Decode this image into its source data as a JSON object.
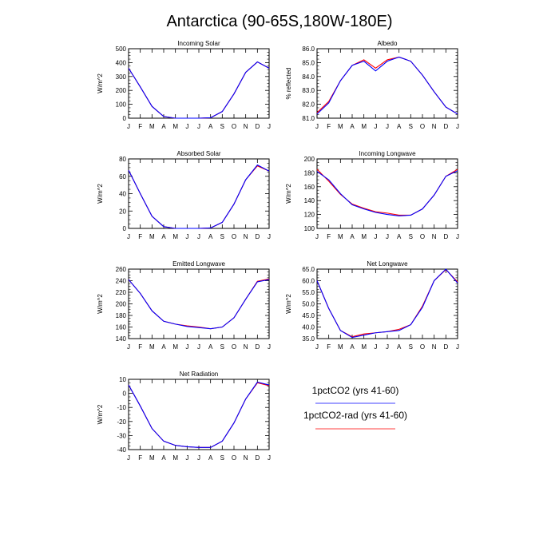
{
  "title": "Antarctica (90-65S,180W-180E)",
  "months": [
    "J",
    "F",
    "M",
    "A",
    "M",
    "J",
    "J",
    "A",
    "S",
    "O",
    "N",
    "D",
    "J"
  ],
  "legend": [
    {
      "label": "1pctCO2 (yrs 41-60)",
      "color": "#0000ff"
    },
    {
      "label": "1pctCO2-rad (yrs 41-60)",
      "color": "#ff0000"
    }
  ],
  "chart_data": [
    {
      "type": "line",
      "title": "Incoming Solar",
      "ylabel": "W/m^2",
      "ylim": [
        0,
        500
      ],
      "yticks": [
        0,
        100,
        200,
        300,
        400,
        500
      ],
      "ytick_labels": [
        "0",
        "100",
        "200",
        "300",
        "400",
        "500"
      ],
      "series": [
        {
          "color": "#0000ff",
          "values": [
            360,
            225,
            85,
            12,
            0,
            0,
            0,
            3,
            48,
            175,
            330,
            405,
            360
          ]
        },
        {
          "color": "#ff0000",
          "values": [
            360,
            225,
            85,
            12,
            0,
            0,
            0,
            3,
            48,
            175,
            330,
            405,
            360
          ]
        }
      ]
    },
    {
      "type": "line",
      "title": "Albedo",
      "ylabel": "% reflected",
      "ylim": [
        81,
        86
      ],
      "yticks": [
        81,
        82,
        83,
        84,
        85,
        86
      ],
      "ytick_labels": [
        "81.0",
        "82.0",
        "83.0",
        "84.0",
        "85.0",
        "86.0"
      ],
      "series": [
        {
          "color": "#0000ff",
          "values": [
            81.3,
            82.1,
            83.7,
            84.8,
            85.1,
            84.4,
            85.1,
            85.4,
            85.1,
            84.1,
            82.9,
            81.8,
            81.3
          ]
        },
        {
          "color": "#ff0000",
          "values": [
            81.4,
            82.2,
            83.7,
            84.8,
            85.2,
            84.6,
            85.2,
            85.4,
            85.1,
            84.1,
            82.9,
            81.8,
            81.3
          ]
        }
      ]
    },
    {
      "type": "line",
      "title": "Absorbed Solar",
      "ylabel": "W/m^2",
      "ylim": [
        0,
        80
      ],
      "yticks": [
        0,
        20,
        40,
        60,
        80
      ],
      "ytick_labels": [
        "0",
        "20",
        "40",
        "60",
        "80"
      ],
      "series": [
        {
          "color": "#0000ff",
          "values": [
            67,
            40,
            14,
            2,
            0,
            0,
            0,
            0.5,
            7,
            28,
            56,
            73,
            66
          ]
        },
        {
          "color": "#ff0000",
          "values": [
            67,
            40,
            14,
            2,
            0,
            0,
            0,
            0.5,
            7,
            28,
            56,
            72,
            66
          ]
        }
      ]
    },
    {
      "type": "line",
      "title": "Incoming Longwave",
      "ylabel": "W/m^2",
      "ylim": [
        100,
        200
      ],
      "yticks": [
        100,
        120,
        140,
        160,
        180,
        200
      ],
      "ytick_labels": [
        "100",
        "120",
        "140",
        "160",
        "180",
        "200"
      ],
      "series": [
        {
          "color": "#0000ff",
          "values": [
            182,
            170,
            150,
            134,
            128,
            123,
            120,
            118,
            119,
            128,
            148,
            175,
            183
          ]
        },
        {
          "color": "#ff0000",
          "values": [
            185,
            168,
            149,
            135,
            129,
            124,
            122,
            119,
            119,
            128,
            148,
            175,
            185
          ]
        }
      ]
    },
    {
      "type": "line",
      "title": "Emitted Longwave",
      "ylabel": "W/m^2",
      "ylim": [
        140,
        260
      ],
      "yticks": [
        140,
        160,
        180,
        200,
        220,
        240,
        260
      ],
      "ytick_labels": [
        "140",
        "160",
        "180",
        "200",
        "220",
        "240",
        "260"
      ],
      "series": [
        {
          "color": "#0000ff",
          "values": [
            242,
            218,
            188,
            170,
            165,
            161,
            159,
            157,
            160,
            176,
            208,
            238,
            242
          ]
        },
        {
          "color": "#ff0000",
          "values": [
            242,
            218,
            188,
            170,
            165,
            162,
            160,
            157,
            160,
            176,
            208,
            239,
            243
          ]
        }
      ]
    },
    {
      "type": "line",
      "title": "Net Longwave",
      "ylabel": "W/m^2",
      "ylim": [
        35,
        65
      ],
      "yticks": [
        35,
        40,
        45,
        50,
        55,
        60,
        65
      ],
      "ytick_labels": [
        "35.0",
        "40.0",
        "45.0",
        "50.0",
        "55.0",
        "60.0",
        "65.0"
      ],
      "series": [
        {
          "color": "#0000ff",
          "values": [
            60,
            48,
            38.5,
            35.5,
            36.5,
            37.5,
            38,
            38.5,
            41,
            48.5,
            60,
            65,
            59
          ]
        },
        {
          "color": "#ff0000",
          "values": [
            60,
            48,
            38.5,
            35.8,
            37,
            37.5,
            38,
            39,
            41,
            49,
            60,
            64.8,
            59.5
          ]
        }
      ]
    },
    {
      "type": "line",
      "title": "Net Radiation",
      "ylabel": "W/m^2",
      "ylim": [
        -40,
        10
      ],
      "yticks": [
        -40,
        -30,
        -20,
        -10,
        0,
        10
      ],
      "ytick_labels": [
        "-40",
        "-30",
        "-20",
        "-10",
        "0",
        "10"
      ],
      "series": [
        {
          "color": "#0000ff",
          "values": [
            6,
            -9,
            -25,
            -34,
            -37,
            -38,
            -38.5,
            -38.5,
            -34,
            -21,
            -4,
            8,
            6
          ]
        },
        {
          "color": "#ff0000",
          "values": [
            6,
            -9,
            -25,
            -34,
            -37,
            -38,
            -38.5,
            -38.5,
            -34,
            -21,
            -4,
            7.5,
            5.5
          ]
        }
      ]
    }
  ]
}
